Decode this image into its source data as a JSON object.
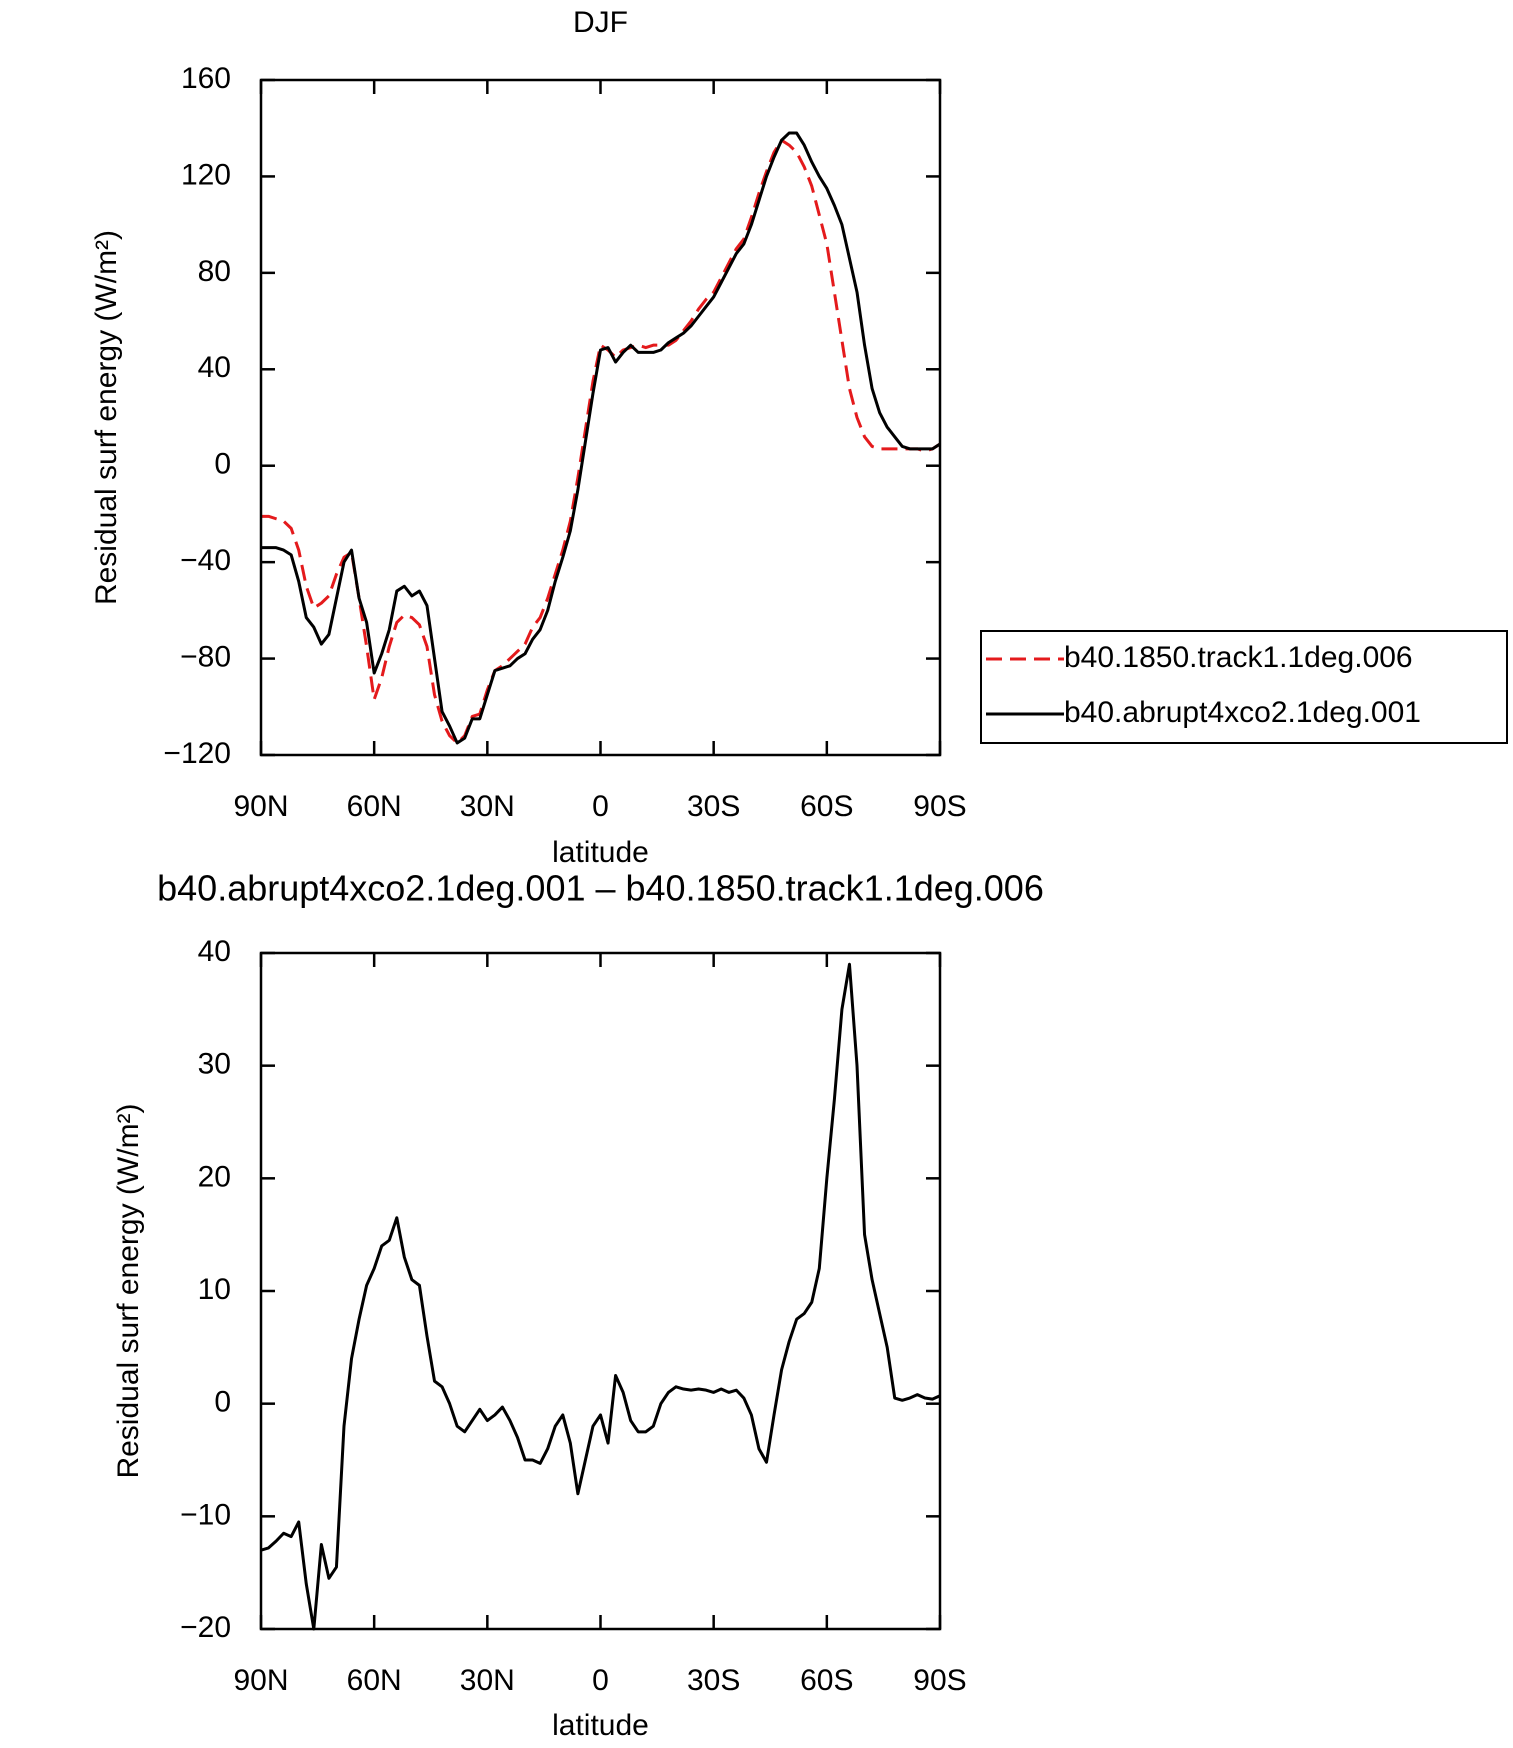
{
  "chart_data": [
    {
      "type": "line",
      "title": "DJF",
      "xlabel": "latitude",
      "ylabel": "Residual surf energy (W/m²)",
      "x": [
        90,
        88,
        86,
        84,
        82,
        80,
        78,
        76,
        74,
        72,
        70,
        68,
        66,
        64,
        62,
        60,
        58,
        56,
        54,
        52,
        50,
        48,
        46,
        44,
        42,
        40,
        38,
        36,
        34,
        32,
        30,
        28,
        26,
        24,
        22,
        20,
        18,
        16,
        14,
        12,
        10,
        8,
        6,
        4,
        2,
        0,
        -2,
        -4,
        -6,
        -8,
        -10,
        -12,
        -14,
        -16,
        -18,
        -20,
        -22,
        -24,
        -26,
        -28,
        -30,
        -32,
        -34,
        -36,
        -38,
        -40,
        -42,
        -44,
        -46,
        -48,
        -50,
        -52,
        -54,
        -56,
        -58,
        -60,
        -62,
        -64,
        -66,
        -68,
        -70,
        -72,
        -74,
        -76,
        -78,
        -80,
        -82,
        -84,
        -86,
        -88,
        -90
      ],
      "series": [
        {
          "name": "b40.1850.track1.1deg.006",
          "color": "#e41a1c",
          "dash": "dashed",
          "values": [
            -21,
            -21,
            -22,
            -23,
            -26,
            -35,
            -50,
            -59,
            -57,
            -54,
            -45,
            -38,
            -36,
            -55,
            -75,
            -97,
            -88,
            -75,
            -65,
            -62,
            -63,
            -66,
            -75,
            -95,
            -106,
            -112,
            -115,
            -112,
            -104,
            -103,
            -93,
            -85,
            -83,
            -80,
            -77,
            -74,
            -67,
            -63,
            -55,
            -45,
            -35,
            -23,
            -5,
            15,
            35,
            50,
            48,
            45,
            48,
            49,
            50,
            49,
            50,
            50,
            50,
            52,
            56,
            60,
            65,
            69,
            72,
            78,
            84,
            90,
            94,
            103,
            113,
            122,
            130,
            135,
            133,
            130,
            124,
            116,
            104,
            92,
            72,
            52,
            32,
            20,
            12,
            8,
            7,
            7,
            7,
            7,
            7,
            7,
            6,
            7,
            9
          ]
        },
        {
          "name": "b40.abrupt4xco2.1deg.001",
          "color": "#000000",
          "dash": "solid",
          "values": [
            -34,
            -34,
            -34,
            -35,
            -37,
            -48,
            -63,
            -67,
            -74,
            -70,
            -55,
            -40,
            -35,
            -55,
            -65,
            -86,
            -78,
            -68,
            -52,
            -50,
            -54,
            -52,
            -58,
            -80,
            -102,
            -108,
            -115,
            -113,
            -105,
            -105,
            -95,
            -85,
            -84,
            -83,
            -80,
            -78,
            -72,
            -68,
            -60,
            -48,
            -38,
            -27,
            -10,
            10,
            30,
            48,
            49,
            43,
            47,
            50,
            47,
            47,
            47,
            48,
            51,
            53,
            55,
            58,
            62,
            66,
            70,
            76,
            82,
            88,
            92,
            100,
            110,
            120,
            128,
            135,
            138,
            138,
            133,
            126,
            120,
            115,
            108,
            100,
            86,
            72,
            50,
            32,
            22,
            16,
            12,
            8,
            7,
            7,
            7,
            7,
            9
          ]
        }
      ],
      "xlim": [
        90,
        -90
      ],
      "xticks": [
        {
          "value": 90,
          "label": "90N"
        },
        {
          "value": 60,
          "label": "60N"
        },
        {
          "value": 30,
          "label": "30N"
        },
        0,
        {
          "value": -30,
          "label": "30S"
        },
        {
          "value": -60,
          "label": "60S"
        },
        {
          "value": -90,
          "label": "90S"
        }
      ],
      "ylim": [
        -120,
        160
      ],
      "yticks": [
        {
          "value": -120,
          "label": "−120"
        },
        {
          "value": -80,
          "label": "−80"
        },
        {
          "value": -40,
          "label": "−40"
        },
        0,
        40,
        80,
        120,
        160
      ],
      "grid": false,
      "legend": "right"
    },
    {
      "type": "line",
      "title": "b40.abrupt4xco2.1deg.001 – b40.1850.track1.1deg.006",
      "xlabel": "latitude",
      "ylabel": "Residual surf energy (W/m²)",
      "x": [
        90,
        88,
        86,
        84,
        82,
        80,
        78,
        76,
        74,
        72,
        70,
        68,
        66,
        64,
        62,
        60,
        58,
        56,
        54,
        52,
        50,
        48,
        46,
        44,
        42,
        40,
        38,
        36,
        34,
        32,
        30,
        28,
        26,
        24,
        22,
        20,
        18,
        16,
        14,
        12,
        10,
        8,
        6,
        4,
        2,
        0,
        -2,
        -4,
        -6,
        -8,
        -10,
        -12,
        -14,
        -16,
        -18,
        -20,
        -22,
        -24,
        -26,
        -28,
        -30,
        -32,
        -34,
        -36,
        -38,
        -40,
        -42,
        -44,
        -46,
        -48,
        -50,
        -52,
        -54,
        -56,
        -58,
        -60,
        -62,
        -64,
        -66,
        -68,
        -70,
        -72,
        -74,
        -76,
        -78,
        -80,
        -82,
        -84,
        -86,
        -88,
        -90
      ],
      "series": [
        {
          "color": "#000000",
          "dash": "solid",
          "values": [
            -13,
            -12.8,
            -12.2,
            -11.5,
            -11.8,
            -10.5,
            -16,
            -20,
            -12.5,
            -15.5,
            -14.5,
            -2,
            4,
            7.5,
            10.5,
            12,
            14,
            14.5,
            16.5,
            13,
            11,
            10.5,
            6,
            2,
            1.5,
            0,
            -2,
            -2.5,
            -1.5,
            -0.5,
            -1.5,
            -1,
            -0.3,
            -1.5,
            -3,
            -5,
            -5,
            -5.3,
            -4,
            -2,
            -1,
            -3.5,
            -8,
            -5,
            -2,
            -1,
            -3.5,
            2.5,
            1,
            -1.5,
            -2.5,
            -2.5,
            -2,
            0,
            1,
            1.5,
            1.3,
            1.2,
            1.3,
            1.2,
            1,
            1.3,
            1,
            1.2,
            0.5,
            -1,
            -4,
            -5.2,
            -1,
            3,
            5.5,
            7.5,
            8,
            9,
            12,
            20,
            27,
            35,
            39,
            30,
            15,
            11,
            8,
            5,
            0.5,
            0.3,
            0.5,
            0.8,
            0.5,
            0.4,
            0.7
          ]
        }
      ],
      "xlim": [
        90,
        -90
      ],
      "xticks": [
        {
          "value": 90,
          "label": "90N"
        },
        {
          "value": 60,
          "label": "60N"
        },
        {
          "value": 30,
          "label": "30N"
        },
        0,
        {
          "value": -30,
          "label": "30S"
        },
        {
          "value": -60,
          "label": "60S"
        },
        {
          "value": -90,
          "label": "90S"
        }
      ],
      "ylim": [
        -20,
        40
      ],
      "yticks": [
        {
          "value": -20,
          "label": "−20"
        },
        {
          "value": -10,
          "label": "−10"
        },
        0,
        10,
        20,
        30,
        40
      ],
      "grid": false
    }
  ]
}
